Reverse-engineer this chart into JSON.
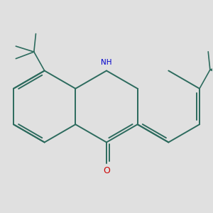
{
  "background_color": "#e0e0e0",
  "bond_color": "#2d6b5e",
  "N_color": "#0000cc",
  "O_color": "#cc0000",
  "figsize": [
    3.0,
    3.0
  ],
  "dpi": 100
}
